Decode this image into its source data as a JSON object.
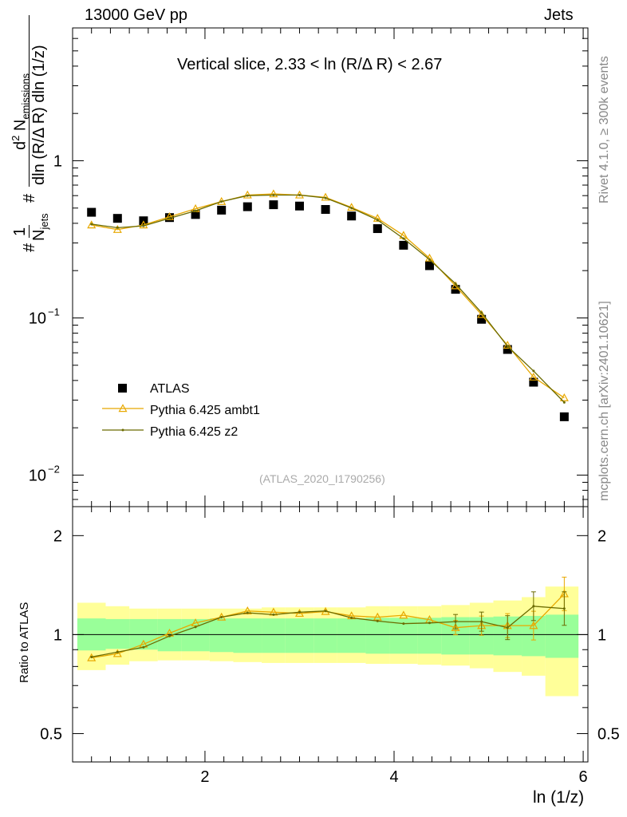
{
  "header": {
    "left": "13000 GeV pp",
    "right": "Jets"
  },
  "sidebar": {
    "rivet": "Rivet 4.1.0, ≥ 300k events",
    "site": "mcplots.cern.ch [arXiv:2401.10621]"
  },
  "chart_data": {
    "type": "scatter",
    "title": "Vertical slice, 2.33 < ln (R/Δ R) < 2.67",
    "watermark": "(ATLAS_2020_I1790256)",
    "xlabel": "ln (1/z)",
    "ylabel_main": "1/N_jets d²N_emissions / dln(R/ΔR) dln(1/z)",
    "ylabel_main_parts": {
      "frac_num": "1",
      "frac_den": "N",
      "den_sub": "jets",
      "d2": "d",
      "d2_sup": "2",
      "N": "N",
      "N_sub": "emissions",
      "den_expr": "dln (R/Δ R) dln (1/z)",
      "hash": "#"
    },
    "ylabel_ratio": "Ratio to ATLAS",
    "xlim": [
      0.6,
      6.05
    ],
    "ylim_main": [
      0.0063,
      7.0
    ],
    "ylim_ratio": [
      0.41,
      2.45
    ],
    "yscale_main": "log",
    "yscale_ratio": "log",
    "x_ticks": [
      2,
      4,
      6
    ],
    "x_tick_labels": [
      "2",
      "4",
      "6"
    ],
    "y_ticks_main": [
      0.01,
      0.1,
      1
    ],
    "y_tick_labels_main": {
      "one": "1",
      "tenth_base": "10",
      "tenth_exp": "−1",
      "hund_base": "10",
      "hund_exp": "−2"
    },
    "y_ticks_ratio": [
      0.5,
      1,
      2
    ],
    "y_tick_labels_ratio": [
      "0.5",
      "1",
      "2"
    ],
    "legend": {
      "position": "bottom-left",
      "entries": [
        "ATLAS",
        "Pythia 6.425 ambt1",
        "Pythia 6.425 z2"
      ]
    },
    "x": [
      0.8,
      1.075,
      1.35,
      1.625,
      1.9,
      2.175,
      2.45,
      2.725,
      3.0,
      3.275,
      3.55,
      3.825,
      4.1,
      4.375,
      4.65,
      4.925,
      5.2,
      5.475,
      5.8
    ],
    "bin_edges": [
      0.65,
      0.95,
      1.2,
      1.5,
      1.75,
      2.05,
      2.3,
      2.6,
      2.85,
      3.15,
      3.4,
      3.7,
      3.95,
      4.25,
      4.5,
      4.8,
      5.05,
      5.35,
      5.6,
      5.95
    ],
    "series": [
      {
        "name": "ATLAS",
        "color": "#000000",
        "values": [
          0.47,
          0.43,
          0.415,
          0.435,
          0.455,
          0.485,
          0.51,
          0.525,
          0.515,
          0.49,
          0.445,
          0.37,
          0.29,
          0.215,
          0.152,
          0.098,
          0.063,
          0.039,
          0.0235
        ]
      },
      {
        "name": "Pythia 6.425 ambt1",
        "color": "#e8a800",
        "values": [
          0.39,
          0.365,
          0.39,
          0.44,
          0.495,
          0.55,
          0.605,
          0.615,
          0.605,
          0.585,
          0.505,
          0.43,
          0.335,
          0.24,
          0.16,
          0.105,
          0.067,
          0.042,
          0.031
        ],
        "ratio": [
          0.85,
          0.875,
          0.935,
          1.01,
          1.085,
          1.13,
          1.18,
          1.17,
          1.16,
          1.175,
          1.14,
          1.13,
          1.145,
          1.11,
          1.05,
          1.065,
          1.065,
          1.065,
          1.33
        ]
      },
      {
        "name": "Pythia 6.425 z2",
        "color": "#6b6b00",
        "values": [
          0.395,
          0.375,
          0.385,
          0.43,
          0.48,
          0.55,
          0.6,
          0.605,
          0.605,
          0.58,
          0.5,
          0.42,
          0.32,
          0.235,
          0.165,
          0.108,
          0.066,
          0.046,
          0.029
        ],
        "ratio": [
          0.855,
          0.885,
          0.915,
          0.99,
          1.055,
          1.13,
          1.165,
          1.15,
          1.17,
          1.18,
          1.125,
          1.1,
          1.08,
          1.085,
          1.095,
          1.095,
          1.05,
          1.22,
          1.2
        ]
      }
    ],
    "ratio_bands": {
      "green": {
        "color": "#99ff99",
        "lo": [
          0.895,
          0.905,
          0.9,
          0.89,
          0.89,
          0.885,
          0.88,
          0.88,
          0.88,
          0.88,
          0.88,
          0.875,
          0.875,
          0.875,
          0.87,
          0.87,
          0.865,
          0.86,
          0.85
        ],
        "hi": [
          1.12,
          1.115,
          1.115,
          1.115,
          1.115,
          1.12,
          1.12,
          1.12,
          1.12,
          1.12,
          1.12,
          1.125,
          1.125,
          1.125,
          1.13,
          1.13,
          1.135,
          1.14,
          1.15
        ]
      },
      "yellow": {
        "color": "#ffff99",
        "lo": [
          0.78,
          0.81,
          0.83,
          0.835,
          0.835,
          0.83,
          0.825,
          0.82,
          0.82,
          0.82,
          0.82,
          0.815,
          0.815,
          0.81,
          0.805,
          0.79,
          0.77,
          0.75,
          0.65
        ],
        "hi": [
          1.25,
          1.22,
          1.2,
          1.2,
          1.2,
          1.2,
          1.2,
          1.21,
          1.21,
          1.21,
          1.21,
          1.22,
          1.22,
          1.22,
          1.23,
          1.25,
          1.27,
          1.3,
          1.4
        ]
      }
    }
  }
}
